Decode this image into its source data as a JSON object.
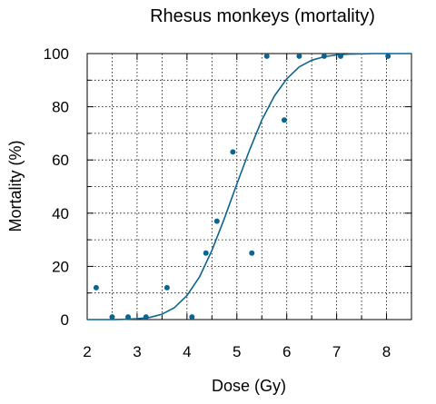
{
  "chart_data": {
    "type": "scatter",
    "title": "Rhesus monkeys (mortality)",
    "xlabel": "Dose (Gy)",
    "ylabel": "Mortality (%)",
    "xlim": [
      2,
      8.5
    ],
    "ylim": [
      0,
      100
    ],
    "x_ticks": [
      2,
      3,
      4,
      5,
      6,
      7,
      8
    ],
    "y_ticks": [
      0,
      20,
      40,
      60,
      80,
      100
    ],
    "x_tick_labels": [
      "2",
      "3",
      "4",
      "5",
      "6",
      "7",
      "8"
    ],
    "y_tick_labels": [
      "0",
      "20",
      "40",
      "60",
      "80",
      "100"
    ],
    "grid": true,
    "series": [
      {
        "type": "scatter",
        "color": "#0a6591",
        "x": [
          2.18,
          2.5,
          2.82,
          3.18,
          3.6,
          4.1,
          4.38,
          4.6,
          4.92,
          5.3,
          5.6,
          5.95,
          6.25,
          6.75,
          7.08,
          8.03
        ],
        "y": [
          12,
          1,
          1,
          1,
          12,
          1,
          25,
          37,
          63,
          25,
          99,
          75,
          99,
          99,
          99,
          99
        ]
      },
      {
        "type": "line",
        "color": "#0a6591",
        "x": [
          2,
          2.25,
          2.5,
          2.75,
          3,
          3.25,
          3.5,
          3.75,
          4,
          4.25,
          4.5,
          4.75,
          5,
          5.25,
          5.5,
          5.75,
          6,
          6.25,
          6.5,
          6.75,
          7,
          7.25,
          7.5,
          7.75,
          8,
          8.25,
          8.5
        ],
        "y": [
          0,
          0,
          0,
          0.1,
          0.3,
          0.8,
          2,
          4.5,
          9,
          16,
          26,
          38,
          51,
          63.5,
          75,
          84,
          90.5,
          95,
          97.5,
          98.8,
          99.5,
          99.8,
          99.9,
          100,
          100,
          100,
          100
        ]
      }
    ]
  }
}
